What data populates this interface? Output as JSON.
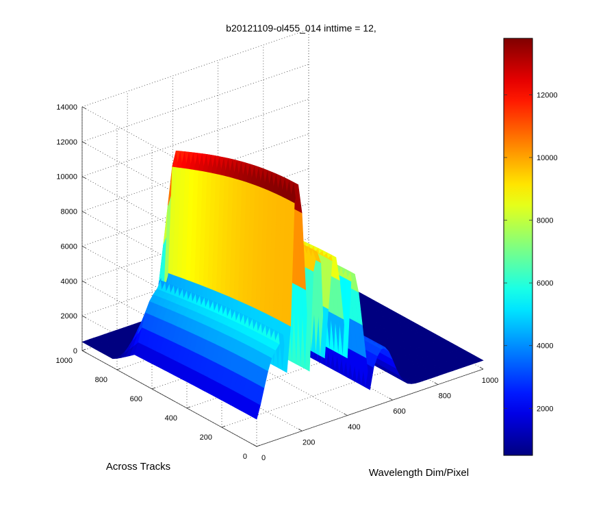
{
  "chart_data": {
    "type": "surface",
    "title": "b20121109-ol455_014 inttime = 12,",
    "xlabel": "Wavelength Dim/Pixel",
    "ylabel": "Across Tracks",
    "zlabel": "",
    "xlim": [
      0,
      1000
    ],
    "ylim": [
      0,
      1000
    ],
    "zlim": [
      0,
      14000
    ],
    "x_ticks": [
      "0",
      "200",
      "400",
      "600",
      "800",
      "1000"
    ],
    "y_ticks": [
      "0",
      "200",
      "400",
      "600",
      "800",
      "1000"
    ],
    "z_ticks": [
      "0",
      "2000",
      "4000",
      "6000",
      "8000",
      "10000",
      "12000",
      "14000"
    ],
    "grid": true,
    "colormap": "jet",
    "colorbar": {
      "placement": "right",
      "range": [
        500,
        13800
      ],
      "ticks": [
        "2000",
        "4000",
        "6000",
        "8000",
        "10000",
        "12000"
      ],
      "tick_values": [
        2000,
        4000,
        6000,
        8000,
        10000,
        12000
      ]
    },
    "surface": {
      "background": 500,
      "y_extent": [
        0,
        820
      ],
      "bands": [
        {
          "x": 80,
          "width": 85,
          "peak": 4900
        },
        {
          "x": 180,
          "width": 62,
          "peak": 13700
        },
        {
          "x": 270,
          "width": 55,
          "peak": 9300
        },
        {
          "x": 345,
          "width": 50,
          "peak": 8700
        },
        {
          "x": 430,
          "width": 60,
          "peak": 7900
        },
        {
          "x": 560,
          "width": 80,
          "peak": 3200
        }
      ],
      "gaps": [
        {
          "x": 140,
          "width": 22
        },
        {
          "x": 230,
          "width": 18
        },
        {
          "x": 305,
          "width": 16
        },
        {
          "x": 395,
          "width": 14
        },
        {
          "x": 500,
          "width": 18
        }
      ]
    }
  }
}
